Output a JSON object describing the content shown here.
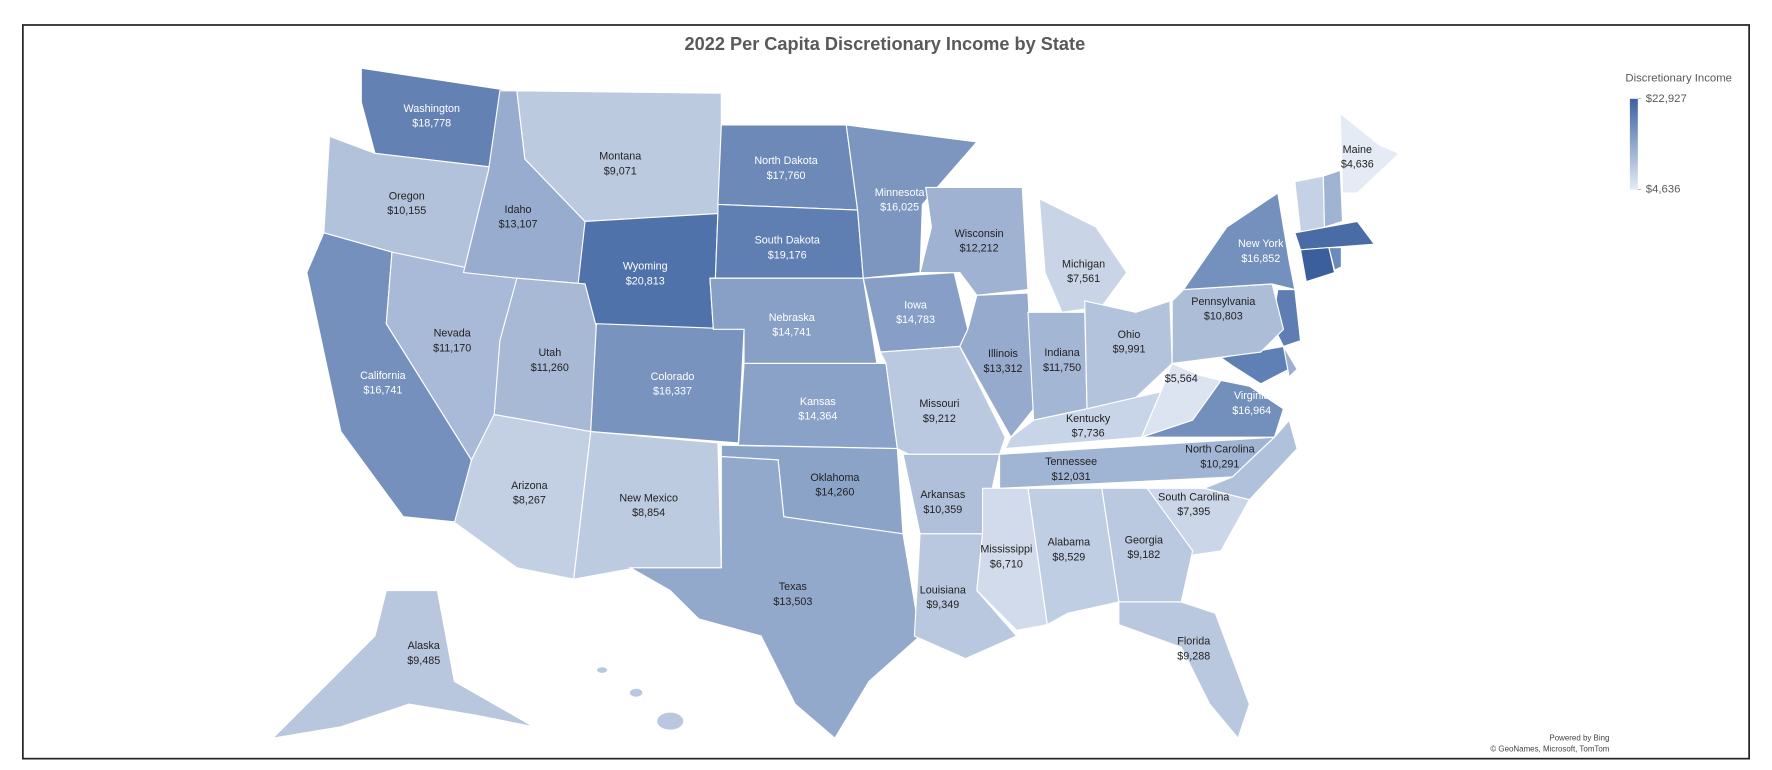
{
  "chart_data": {
    "type": "choropleth",
    "title": "2022 Per Capita Discretionary Income by State",
    "legend_title": "Discretionary Income",
    "categories": [
      "Washington",
      "Oregon",
      "California",
      "Nevada",
      "Idaho",
      "Montana",
      "Wyoming",
      "Utah",
      "Arizona",
      "Colorado",
      "New Mexico",
      "North Dakota",
      "South Dakota",
      "Nebraska",
      "Kansas",
      "Oklahoma",
      "Texas",
      "Minnesota",
      "Iowa",
      "Missouri",
      "Arkansas",
      "Louisiana",
      "Wisconsin",
      "Illinois",
      "Michigan",
      "Indiana",
      "Ohio",
      "Kentucky",
      null,
      "Virginia",
      "Tennessee",
      "North Carolina",
      "South Carolina",
      "Georgia",
      "Alabama",
      "Mississippi",
      "Florida",
      "Pennsylvania",
      "New York",
      "Maine",
      "Alaska"
    ],
    "values": [
      18778,
      10155,
      16741,
      11170,
      13107,
      9071,
      20813,
      11260,
      8267,
      16337,
      8854,
      17760,
      19176,
      14741,
      14364,
      14260,
      13503,
      16025,
      14783,
      9212,
      10359,
      9349,
      12212,
      13312,
      7561,
      11750,
      9991,
      7736,
      5564,
      16964,
      12031,
      10291,
      7395,
      9182,
      8529,
      6710,
      9288,
      10803,
      16852,
      4636,
      9485
    ],
    "value_labels": [
      "$18,778",
      "$10,155",
      "$16,741",
      "$11,170",
      "$13,107",
      "$9,071",
      "$20,813",
      "$11,260",
      "$8,267",
      "$16,337",
      "$8,854",
      "$17,760",
      "$19,176",
      "$14,741",
      "$14,364",
      "$14,260",
      "$13,503",
      "$16,025",
      "$14,783",
      "$9,212",
      "$10,359",
      "$9,349",
      "$12,212",
      "$13,312",
      "$7,561",
      "$11,750",
      "$9,991",
      "$7,736",
      "$5,564",
      "$16,964",
      "$12,031",
      "$10,291",
      "$7,395",
      "$9,182",
      "$8,529",
      "$6,710",
      "$9,288",
      "$10,803",
      "$16,852",
      "$4,636",
      "$9,485"
    ],
    "clim": [
      4636,
      22927
    ],
    "colors": {
      "low": "#e4ebf5",
      "high": "#3d62a0"
    },
    "colorbar_ticks": [
      {
        "value": 22927,
        "label": "$22,927"
      },
      {
        "value": 4636,
        "label": "$4,636"
      }
    ],
    "attribution": [
      "Powered by Bing",
      "© GeoNames, Microsoft, TomTom"
    ]
  }
}
